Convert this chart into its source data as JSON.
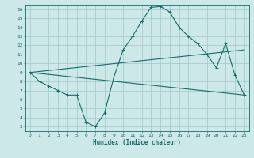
{
  "xlabel": "Humidex (Indice chaleur)",
  "background_color": "#cce8e8",
  "grid_color": "#a0c8c8",
  "line_color": "#1a6b6b",
  "xlim": [
    -0.5,
    23.5
  ],
  "ylim": [
    2.5,
    16.5
  ],
  "xticks": [
    0,
    1,
    2,
    3,
    4,
    5,
    6,
    7,
    8,
    9,
    10,
    11,
    12,
    13,
    14,
    15,
    16,
    17,
    18,
    19,
    20,
    21,
    22,
    23
  ],
  "yticks": [
    3,
    4,
    5,
    6,
    7,
    8,
    9,
    10,
    11,
    12,
    13,
    14,
    15,
    16
  ],
  "line1_x": [
    0,
    1,
    2,
    3,
    4,
    5,
    6,
    7,
    8,
    9,
    10,
    11,
    12,
    13,
    14,
    15,
    16,
    17,
    18,
    19,
    20,
    21,
    22,
    23
  ],
  "line1_y": [
    9.0,
    8.0,
    7.5,
    7.0,
    6.5,
    6.5,
    3.5,
    3.0,
    4.5,
    8.5,
    11.5,
    13.0,
    14.7,
    16.2,
    16.3,
    15.7,
    14.0,
    13.0,
    12.2,
    11.0,
    9.5,
    12.2,
    8.7,
    6.5
  ],
  "line2_x": [
    0,
    23
  ],
  "line2_y": [
    9.0,
    11.5
  ],
  "line3_x": [
    0,
    23
  ],
  "line3_y": [
    9.0,
    6.5
  ],
  "marker": "+"
}
